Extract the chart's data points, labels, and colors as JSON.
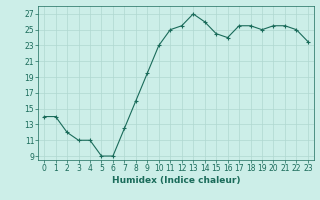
{
  "x": [
    0,
    1,
    2,
    3,
    4,
    5,
    6,
    7,
    8,
    9,
    10,
    11,
    12,
    13,
    14,
    15,
    16,
    17,
    18,
    19,
    20,
    21,
    22,
    23
  ],
  "y": [
    14,
    14,
    12,
    11,
    11,
    9,
    9,
    12.5,
    16,
    19.5,
    23,
    25,
    25.5,
    27,
    26,
    24.5,
    24,
    25.5,
    25.5,
    25,
    25.5,
    25.5,
    25,
    23.5
  ],
  "line_color": "#1a6b5a",
  "marker": "+",
  "bg_color": "#cceee8",
  "grid_color": "#b0d8d0",
  "xlabel": "Humidex (Indice chaleur)",
  "ylabel_ticks": [
    9,
    11,
    13,
    15,
    17,
    19,
    21,
    23,
    25,
    27
  ],
  "xlim": [
    -0.5,
    23.5
  ],
  "ylim": [
    8.5,
    28
  ],
  "xticks": [
    0,
    1,
    2,
    3,
    4,
    5,
    6,
    7,
    8,
    9,
    10,
    11,
    12,
    13,
    14,
    15,
    16,
    17,
    18,
    19,
    20,
    21,
    22,
    23
  ],
  "label_fontsize": 6.5,
  "tick_fontsize": 5.5
}
